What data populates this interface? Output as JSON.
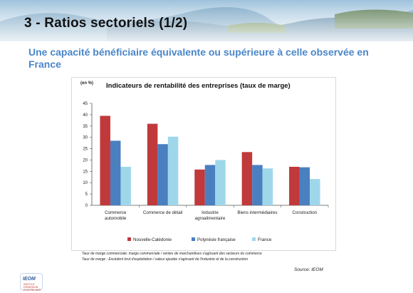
{
  "slide": {
    "title": "3 - Ratios sectoriels (1/2)",
    "subtitle": "Une capacité bénéficiaire équivalente ou supérieure à celle observée en France"
  },
  "chart_data": {
    "type": "bar",
    "title": "Indicateurs de rentabilité des entreprises (taux de marge)",
    "unit": "(en %)",
    "ylim": [
      0,
      45
    ],
    "yticks": [
      0,
      5,
      10,
      15,
      20,
      25,
      30,
      35,
      40,
      45
    ],
    "categories": [
      [
        "Commerce",
        "automobile"
      ],
      [
        "Commerce de détail"
      ],
      [
        "Industrie",
        "agroalimentaire"
      ],
      [
        "Biens intermédiaires"
      ],
      [
        "Construction"
      ]
    ],
    "series": [
      {
        "name": "Nouvelle-Calédonie",
        "color": "#c0393b",
        "values": [
          39.5,
          36,
          15.8,
          23.5,
          17
        ]
      },
      {
        "name": "Polynésie française",
        "color": "#4a7fc0",
        "values": [
          28.5,
          27,
          17.8,
          17.8,
          16.8
        ]
      },
      {
        "name": "France",
        "color": "#9fd7ea",
        "values": [
          17,
          30.3,
          20,
          16.3,
          11.6
        ]
      }
    ],
    "grid": false,
    "legend": "bottom"
  },
  "notes": [
    "Taux de marge commerciale: marge commerciale / ventes de marchandises s'agissant des secteurs du commerce",
    "Taux de marge : Excédent brut d'exploitation / valeur ajoutée s'agissant de l'industrie et de la construction"
  ],
  "source": "Source: IEOM",
  "logo": {
    "text": "IEOM",
    "sub": "INSTITUT D'ÉMISSION D'OUTRE-MER"
  }
}
